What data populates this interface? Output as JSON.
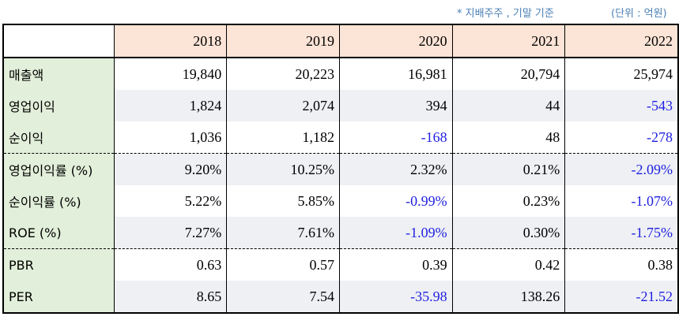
{
  "notes": {
    "basis": "* 지배주주 , 기말 기준",
    "unit": "(단위 : 억원)"
  },
  "table": {
    "header": [
      "2018",
      "2019",
      "2020",
      "2021",
      "2022"
    ],
    "rows": [
      {
        "label": "매출액",
        "cells": [
          "19,840",
          "20,223",
          "16,981",
          "20,794",
          "25,974"
        ]
      },
      {
        "label": "영업이익",
        "cells": [
          "1,824",
          "2,074",
          "394",
          "44",
          "-543"
        ]
      },
      {
        "label": "순이익",
        "cells": [
          "1,036",
          "1,182",
          "-168",
          "48",
          "-278"
        ]
      },
      {
        "label": "영업이익률 (%)",
        "cells": [
          "9.20%",
          "10.25%",
          "2.32%",
          "0.21%",
          "-2.09%"
        ]
      },
      {
        "label": "순이익률 (%)",
        "cells": [
          "5.22%",
          "5.85%",
          "-0.99%",
          "0.23%",
          "-1.07%"
        ]
      },
      {
        "label": "ROE (%)",
        "cells": [
          "7.27%",
          "7.61%",
          "-1.09%",
          "0.30%",
          "-1.75%"
        ]
      },
      {
        "label": "PBR",
        "cells": [
          "0.63",
          "0.57",
          "0.39",
          "0.42",
          "0.38"
        ]
      },
      {
        "label": "PER",
        "cells": [
          "8.65",
          "7.54",
          "-35.98",
          "138.26",
          "-21.52"
        ]
      }
    ]
  }
}
